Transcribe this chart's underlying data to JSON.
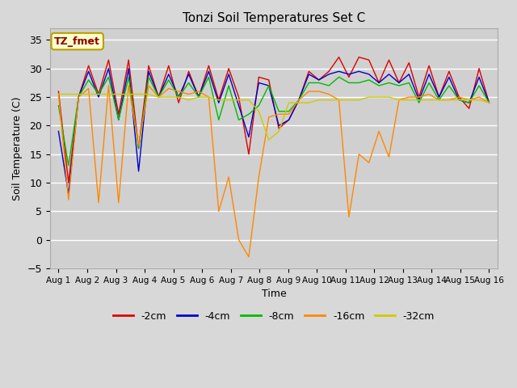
{
  "title": "Tonzi Soil Temperatures Set C",
  "xlabel": "Time",
  "ylabel": "Soil Temperature (C)",
  "ylim": [
    -5,
    37
  ],
  "yticks": [
    -5,
    0,
    5,
    10,
    15,
    20,
    25,
    30,
    35
  ],
  "fig_bg": "#d8d8d8",
  "plot_bg": "#d0d0d0",
  "grid_color": "white",
  "annotation_text": "TZ_fmet",
  "annotation_color": "#8B0000",
  "annotation_bg": "#ffffcc",
  "annotation_border": "#b8a000",
  "legend_entries": [
    "-2cm",
    "-4cm",
    "-8cm",
    "-16cm",
    "-32cm"
  ],
  "line_colors": [
    "#dd0000",
    "#0000cc",
    "#00bb00",
    "#ff8800",
    "#cccc00"
  ],
  "x_labels": [
    "Aug 1",
    "Aug 2",
    "Aug 3",
    "Aug 4",
    "Aug 5",
    "Aug 6",
    "Aug 7",
    "Aug 8",
    "Aug 9",
    "Aug 10",
    "Aug 11",
    "Aug 12",
    "Aug 13",
    "Aug 14",
    "Aug 15",
    "Aug 16"
  ],
  "series": {
    "neg2cm": [
      26,
      10,
      25,
      30.5,
      25.5,
      31.5,
      22,
      31.5,
      16,
      30.5,
      25,
      30.5,
      24,
      29.5,
      25,
      30.5,
      24.5,
      30,
      25,
      15,
      28.5,
      28,
      19.5,
      21,
      24.5,
      29.5,
      28,
      29.5,
      32,
      28.5,
      32,
      31.5,
      27.5,
      31.5,
      27.5,
      31,
      25,
      30.5,
      25,
      29.5,
      25,
      23,
      30,
      24
    ],
    "neg4cm": [
      19,
      8,
      25,
      29.5,
      25,
      30,
      21,
      30,
      12,
      29.5,
      25,
      29,
      25,
      29,
      25,
      29.5,
      24,
      29,
      23.5,
      18,
      27.5,
      27,
      20,
      21,
      24.5,
      29,
      28,
      29,
      29.5,
      29,
      29.5,
      29,
      27.5,
      29,
      27.5,
      29,
      24.5,
      29,
      25,
      28.5,
      24.5,
      24,
      28.5,
      24
    ],
    "neg8cm": [
      23.5,
      13,
      25,
      28,
      25.5,
      28.5,
      21,
      28.5,
      16,
      28.5,
      25,
      28,
      25,
      27.5,
      25,
      28.5,
      21,
      27,
      21,
      22,
      23.5,
      27,
      22.5,
      22.5,
      24.5,
      27.5,
      27.5,
      27,
      28.5,
      27.5,
      27.5,
      28,
      27,
      27.5,
      27,
      27.5,
      24,
      27.5,
      24.5,
      27,
      24.5,
      24,
      27,
      24
    ],
    "neg16cm": [
      25.5,
      7,
      25,
      26.5,
      6.5,
      27,
      6.5,
      27,
      16.5,
      27,
      25,
      26.5,
      26,
      25.5,
      26,
      25,
      5,
      11,
      0,
      -3,
      11,
      21.5,
      22,
      22,
      24.5,
      26,
      26,
      25.5,
      24.5,
      4,
      15,
      13.5,
      19,
      14.5,
      24.5,
      25,
      25,
      25.5,
      24.5,
      24.5,
      25,
      24.5,
      25,
      24
    ],
    "neg32cm": [
      25.5,
      25.5,
      25.5,
      25.5,
      25.5,
      25.5,
      25.5,
      25.5,
      25.5,
      25.5,
      25,
      25,
      25,
      24.5,
      25,
      25,
      24.5,
      24.5,
      24.5,
      24.5,
      22.5,
      17.5,
      19,
      24,
      24,
      24,
      24.5,
      24.5,
      24.5,
      24.5,
      24.5,
      25,
      25,
      25,
      24.5,
      24.5,
      24.5,
      24.5,
      24.5,
      24.5,
      24.5,
      24.5,
      24.5,
      24
    ]
  }
}
